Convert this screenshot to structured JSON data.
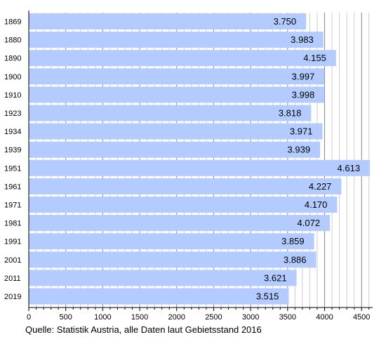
{
  "chart_data": {
    "type": "bar",
    "orientation": "horizontal",
    "categories": [
      "1869",
      "1880",
      "1890",
      "1900",
      "1910",
      "1923",
      "1934",
      "1939",
      "1951",
      "1961",
      "1971",
      "1981",
      "1991",
      "2001",
      "2011",
      "2019"
    ],
    "values": [
      3750,
      3983,
      4155,
      3997,
      3998,
      3818,
      3971,
      3939,
      4613,
      4227,
      4170,
      4072,
      3859,
      3886,
      3621,
      3515
    ],
    "value_labels": [
      "3.750",
      "3.983",
      "4.155",
      "3.997",
      "3.998",
      "3.818",
      "3.971",
      "3.939",
      "4.613",
      "4.227",
      "4.170",
      "4.072",
      "3.859",
      "3.886",
      "3.621",
      "3.515"
    ],
    "x_ticks": [
      0,
      500,
      1000,
      1500,
      2000,
      2500,
      3000,
      3500,
      4000,
      4500
    ],
    "x_tick_labels": [
      "0",
      "500",
      "1000",
      "1500",
      "2000",
      "2500",
      "3000",
      "3500",
      "4000",
      "4500"
    ],
    "xlim": [
      0,
      4650
    ],
    "minor_tick_step": 100,
    "grid": true,
    "bar_color": "#b3cbff",
    "grid_color": "#cccccc",
    "major_grid_color": "#888888",
    "title": "",
    "xlabel": "",
    "ylabel": ""
  },
  "source_note": "Quelle: Statistik Austria, alle Daten laut Gebietsstand 2016"
}
